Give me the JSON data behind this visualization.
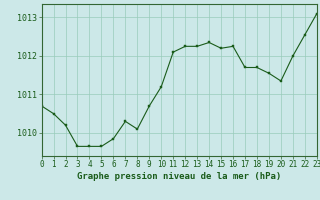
{
  "x": [
    0,
    1,
    2,
    3,
    4,
    5,
    6,
    7,
    8,
    9,
    10,
    11,
    12,
    13,
    14,
    15,
    16,
    17,
    18,
    19,
    20,
    21,
    22,
    23
  ],
  "y": [
    1010.7,
    1010.5,
    1010.2,
    1009.65,
    1009.65,
    1009.65,
    1009.85,
    1010.3,
    1010.1,
    1010.7,
    1011.2,
    1012.1,
    1012.25,
    1012.25,
    1012.35,
    1012.2,
    1012.25,
    1011.7,
    1011.7,
    1011.55,
    1011.35,
    1012.0,
    1012.55,
    1013.1
  ],
  "line_color": "#1a5c1a",
  "marker_color": "#1a5c1a",
  "background_color": "#cce8e8",
  "grid_color": "#99ccbb",
  "title": "Graphe pression niveau de la mer (hPa)",
  "title_color": "#1a5c1a",
  "ylim": [
    1009.4,
    1013.35
  ],
  "yticks": [
    1010,
    1011,
    1012,
    1013
  ],
  "xticks": [
    0,
    1,
    2,
    3,
    4,
    5,
    6,
    7,
    8,
    9,
    10,
    11,
    12,
    13,
    14,
    15,
    16,
    17,
    18,
    19,
    20,
    21,
    22,
    23
  ],
  "xlim": [
    0,
    23
  ],
  "tick_fontsize": 5.5,
  "title_fontsize": 6.5,
  "ytick_fontsize": 6.0,
  "spine_color": "#336633"
}
